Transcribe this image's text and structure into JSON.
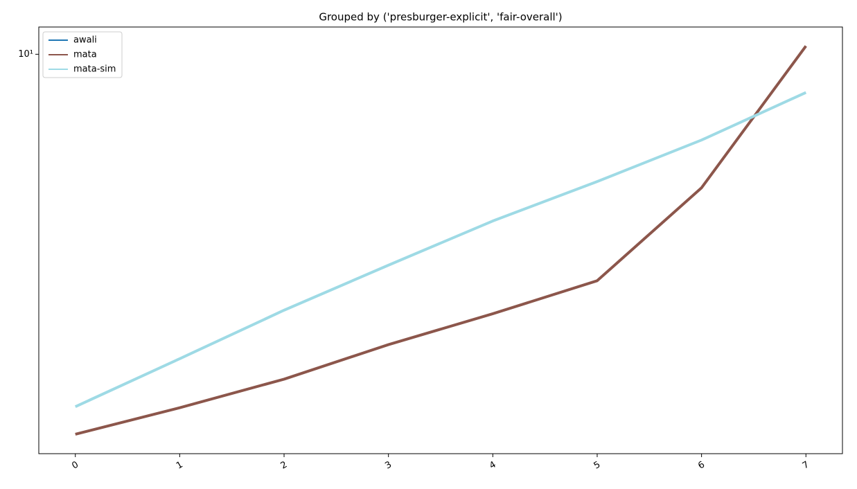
{
  "chart_data": {
    "type": "line",
    "title": "Grouped by ('presburger-explicit', 'fair-overall')",
    "x": [
      0,
      1,
      2,
      3,
      4,
      5,
      6,
      7
    ],
    "series": [
      {
        "name": "awali",
        "color": "#1f77b4",
        "values": [
          null,
          null,
          null,
          null,
          null,
          null,
          null,
          null
        ]
      },
      {
        "name": "mata",
        "color": "#8c564b",
        "values": [
          2.06,
          2.3,
          2.59,
          2.99,
          3.4,
          3.9,
          5.74,
          10.35
        ]
      },
      {
        "name": "mata-sim",
        "color": "#9edae5",
        "values": [
          2.31,
          2.82,
          3.45,
          4.16,
          5.0,
          5.89,
          7.0,
          8.53
        ]
      }
    ],
    "xlim": [
      -0.35,
      7.35
    ],
    "xticks": [
      0,
      1,
      2,
      3,
      4,
      5,
      6,
      7
    ],
    "ylim": [
      1.9,
      11.2
    ],
    "yticks": [
      {
        "value": 10,
        "label": "10¹"
      }
    ],
    "ylog": true,
    "legend": "upper left"
  }
}
